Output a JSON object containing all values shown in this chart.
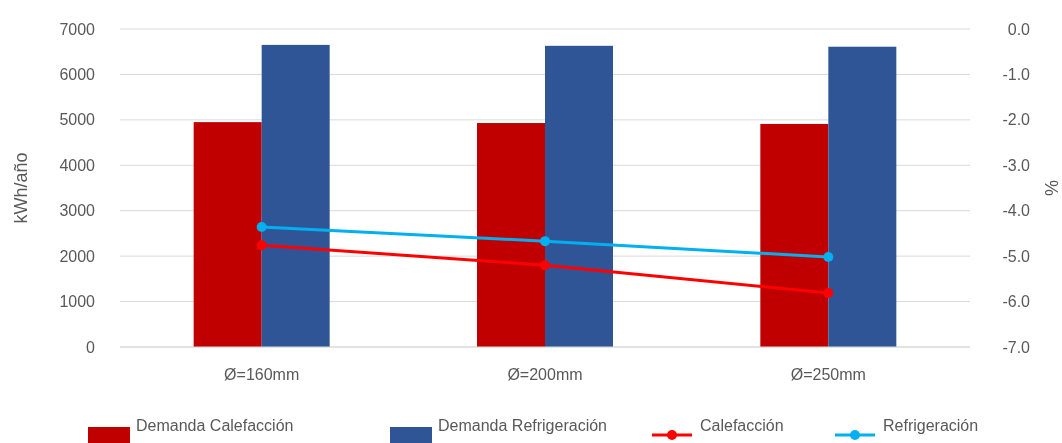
{
  "chart_data": {
    "type": "bar",
    "ylabel": "kWh/año",
    "y2label": "%",
    "categories": [
      "Ø=160mm",
      "Ø=200mm",
      "Ø=250mm"
    ],
    "series": [
      {
        "name": "Demanda Calefacción",
        "color": "#c00000",
        "values": [
          4950,
          4930,
          4910
        ]
      },
      {
        "name": "Demanda Refrigeración",
        "color": "#2f5597",
        "values": [
          6650,
          6630,
          6610
        ]
      },
      {
        "name": "Calefacción",
        "type": "line",
        "axis": "y2",
        "color": "#ff0000",
        "values": [
          -4.76,
          -5.2,
          -5.81
        ]
      },
      {
        "name": "Refrigeración",
        "type": "line",
        "axis": "y2",
        "color": "#00b0f0",
        "values": [
          -4.36,
          -4.67,
          -5.02
        ]
      }
    ],
    "ylim": [
      0,
      7000
    ],
    "yticks": [
      0,
      1000,
      2000,
      3000,
      4000,
      5000,
      6000,
      7000
    ],
    "y2lim": [
      -7,
      0
    ],
    "y2ticks": [
      {
        "value": -7,
        "label": "-7.0"
      },
      {
        "value": -6,
        "label": "-6.0"
      },
      {
        "value": -5,
        "label": "-5.0"
      },
      {
        "value": -4,
        "label": "-4.0"
      },
      {
        "value": -3,
        "label": "-3.0"
      },
      {
        "value": -2,
        "label": "-2.0"
      },
      {
        "value": -1,
        "label": "-1.0"
      },
      {
        "value": 0,
        "label": "0.0"
      }
    ],
    "grid": "y",
    "legend": "bottom",
    "marker": "circle",
    "line_style": "solid"
  }
}
